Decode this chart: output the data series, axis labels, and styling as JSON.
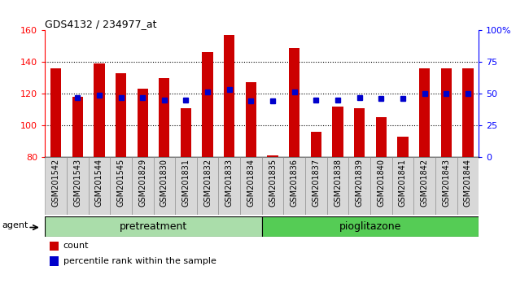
{
  "title": "GDS4132 / 234977_at",
  "samples": [
    "GSM201542",
    "GSM201543",
    "GSM201544",
    "GSM201545",
    "GSM201829",
    "GSM201830",
    "GSM201831",
    "GSM201832",
    "GSM201833",
    "GSM201834",
    "GSM201835",
    "GSM201836",
    "GSM201837",
    "GSM201838",
    "GSM201839",
    "GSM201840",
    "GSM201841",
    "GSM201842",
    "GSM201843",
    "GSM201844"
  ],
  "count_values": [
    136,
    118,
    139,
    133,
    123,
    130,
    111,
    146,
    157,
    127,
    81,
    149,
    96,
    112,
    111,
    105,
    93,
    136,
    136,
    136
  ],
  "percentile_values": [
    null,
    47,
    49,
    47,
    47,
    45,
    45,
    51,
    53,
    44,
    44,
    51,
    45,
    45,
    47,
    46,
    46,
    50,
    50,
    50
  ],
  "group1_label": "pretreatment",
  "group2_label": "pioglitazone",
  "group1_count": 10,
  "group2_count": 10,
  "agent_label": "agent",
  "ymin": 80,
  "ymax": 160,
  "yticks": [
    80,
    100,
    120,
    140,
    160
  ],
  "y2min": 0,
  "y2max": 100,
  "y2ticks": [
    0,
    25,
    50,
    75,
    100
  ],
  "y2ticklabels": [
    "0",
    "25",
    "50",
    "75",
    "100%"
  ],
  "bar_color": "#cc0000",
  "dot_color": "#0000cc",
  "bar_width": 0.5,
  "bg_color": "#d8d8d8",
  "group1_bg": "#aaddaa",
  "group2_bg": "#55cc55",
  "legend_count_label": "count",
  "legend_pct_label": "percentile rank within the sample",
  "grid_yticks": [
    100,
    120,
    140
  ],
  "top_spine_visible": false
}
